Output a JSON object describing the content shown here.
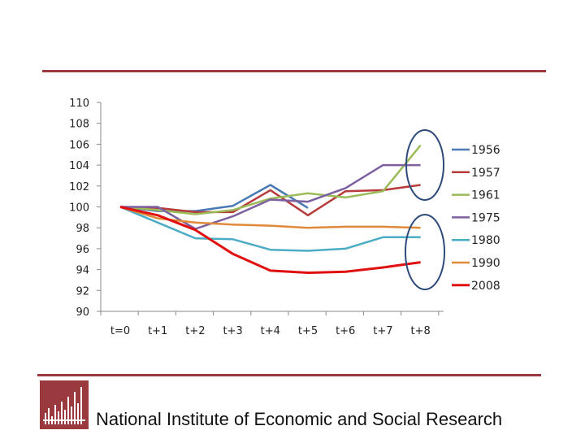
{
  "footer": {
    "organization": "National Institute of Economic and Social Research"
  },
  "chart_data": {
    "type": "line",
    "title": "",
    "xlabel": "",
    "ylabel": "",
    "categories": [
      "t=0",
      "t+1",
      "t+2",
      "t+3",
      "t+4",
      "t+5",
      "t+6",
      "t+7",
      "t+8"
    ],
    "ylim": [
      90,
      110
    ],
    "yticks": [
      90,
      92,
      94,
      96,
      98,
      100,
      102,
      104,
      106,
      108,
      110
    ],
    "legend_position": "right",
    "series": [
      {
        "name": "1956",
        "color": "#4a7ab5",
        "values": [
          100,
          99.6,
          99.6,
          100.1,
          102.1,
          99.9,
          null,
          null,
          null
        ]
      },
      {
        "name": "1957",
        "color": "#b83b3b",
        "values": [
          100,
          99.9,
          99.5,
          99.5,
          101.6,
          99.2,
          101.5,
          101.6,
          102.1
        ]
      },
      {
        "name": "1961",
        "color": "#9bbb59",
        "values": [
          100,
          99.7,
          99.3,
          99.7,
          100.8,
          101.3,
          100.9,
          101.5,
          105.9
        ]
      },
      {
        "name": "1975",
        "color": "#7d60a0",
        "values": [
          100,
          100.0,
          97.9,
          99.1,
          100.7,
          100.5,
          101.8,
          104.0,
          104.0
        ]
      },
      {
        "name": "1980",
        "color": "#4bacc6",
        "values": [
          100,
          98.5,
          97.0,
          96.9,
          95.9,
          95.8,
          96.0,
          97.1,
          97.1
        ]
      },
      {
        "name": "1990",
        "color": "#e0893a",
        "values": [
          100,
          98.9,
          98.5,
          98.3,
          98.2,
          98.0,
          98.1,
          98.1,
          98.0
        ]
      },
      {
        "name": "2008",
        "color": "#e01010",
        "values": [
          100,
          99.2,
          97.8,
          95.5,
          93.9,
          93.7,
          93.8,
          94.2,
          94.7
        ]
      }
    ],
    "annotations": [
      "ellipse around t+8 upper values",
      "ellipse around t+8 lower values"
    ]
  }
}
